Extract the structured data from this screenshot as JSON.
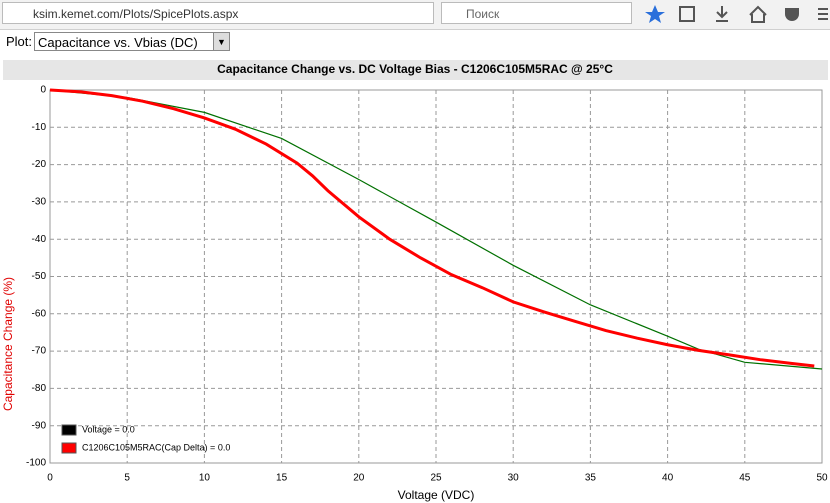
{
  "browser": {
    "url": "ksim.kemet.com/Plots/SpicePlots.aspx",
    "search_placeholder": "Поиск"
  },
  "plot_selector": {
    "label": "Plot:",
    "selected": "Capacitance vs. Vbias (DC)"
  },
  "chart_data": {
    "type": "line",
    "title": "Capacitance Change vs. DC Voltage Bias - C1206C105M5RAC @ 25°C",
    "x_label": "Voltage (VDC)",
    "y_label": "Capacitance Change (%)",
    "xlim": [
      0,
      50
    ],
    "xticks": [
      0,
      5,
      10,
      15,
      20,
      25,
      30,
      35,
      40,
      45,
      50
    ],
    "ylim": [
      -100,
      0
    ],
    "yticks": [
      0,
      -10,
      -20,
      -30,
      -40,
      -50,
      -60,
      -70,
      -80,
      -90,
      -100
    ],
    "grid": true,
    "legend": [
      {
        "label": "Voltage = 0.0",
        "color": "#000000"
      },
      {
        "label": "C1206C105M5RAC(Cap Delta) = 0.0",
        "color": "#ff0000"
      }
    ],
    "series": [
      {
        "color": "#007000",
        "x": [
          0,
          5,
          10,
          15,
          20,
          25,
          30,
          35,
          40,
          42,
          45,
          50
        ],
        "values": [
          0,
          -2,
          -6,
          -13,
          -24,
          -35.4,
          -47,
          -57.6,
          -66,
          -69.5,
          -73,
          -74.8
        ]
      },
      {
        "color": "#ff0000",
        "x": [
          0,
          2,
          4,
          6,
          8,
          10,
          12,
          14,
          16,
          17,
          18,
          20,
          22,
          24,
          26,
          28,
          30,
          32,
          34,
          36,
          38,
          40,
          42,
          44,
          46,
          48,
          49.5
        ],
        "values": [
          0,
          -0.5,
          -1.5,
          -3,
          -5,
          -7.5,
          -10.5,
          -14.5,
          -19.6,
          -23,
          -27,
          -34,
          -40,
          -45,
          -49.5,
          -53,
          -56.8,
          -59.5,
          -62,
          -64.5,
          -66.5,
          -68.3,
          -69.8,
          -71,
          -72.3,
          -73.3,
          -74
        ]
      }
    ]
  }
}
